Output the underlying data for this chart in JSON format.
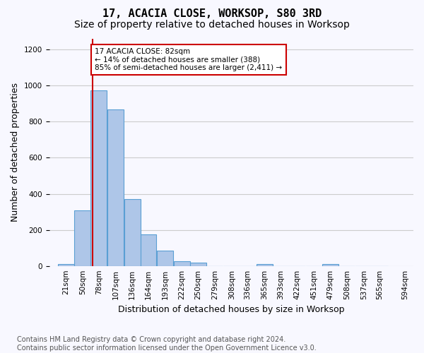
{
  "title": "17, ACACIA CLOSE, WORKSOP, S80 3RD",
  "subtitle": "Size of property relative to detached houses in Worksop",
  "xlabel": "Distribution of detached houses by size in Worksop",
  "ylabel": "Number of detached properties",
  "footer_line1": "Contains HM Land Registry data © Crown copyright and database right 2024.",
  "footer_line2": "Contains public sector information licensed under the Open Government Licence v3.0.",
  "bin_labels": [
    "21sqm",
    "50sqm",
    "78sqm",
    "107sqm",
    "136sqm",
    "164sqm",
    "193sqm",
    "222sqm",
    "250sqm",
    "279sqm",
    "308sqm",
    "336sqm",
    "365sqm",
    "393sqm",
    "422sqm",
    "451sqm",
    "479sqm",
    "508sqm",
    "537sqm",
    "565sqm",
    "594sqm"
  ],
  "bin_edges": [
    21,
    50,
    78,
    107,
    136,
    164,
    193,
    222,
    250,
    279,
    308,
    336,
    365,
    393,
    422,
    451,
    479,
    508,
    537,
    565,
    594
  ],
  "bar_heights": [
    10,
    310,
    975,
    870,
    370,
    175,
    85,
    25,
    20,
    0,
    0,
    0,
    10,
    0,
    0,
    0,
    10,
    0,
    0,
    0
  ],
  "bar_color": "#aec6e8",
  "bar_edge_color": "#5a9fd4",
  "property_size": 82,
  "red_line_color": "#cc0000",
  "annotation_text": "17 ACACIA CLOSE: 82sqm\n← 14% of detached houses are smaller (388)\n85% of semi-detached houses are larger (2,411) →",
  "annotation_box_color": "#cc0000",
  "annotation_text_color": "#000000",
  "ylim": [
    0,
    1260
  ],
  "yticks": [
    0,
    200,
    400,
    600,
    800,
    1000,
    1200
  ],
  "grid_color": "#cccccc",
  "background_color": "#f8f8ff",
  "title_fontsize": 11,
  "subtitle_fontsize": 10,
  "label_fontsize": 9,
  "tick_fontsize": 7.5,
  "footer_fontsize": 7
}
